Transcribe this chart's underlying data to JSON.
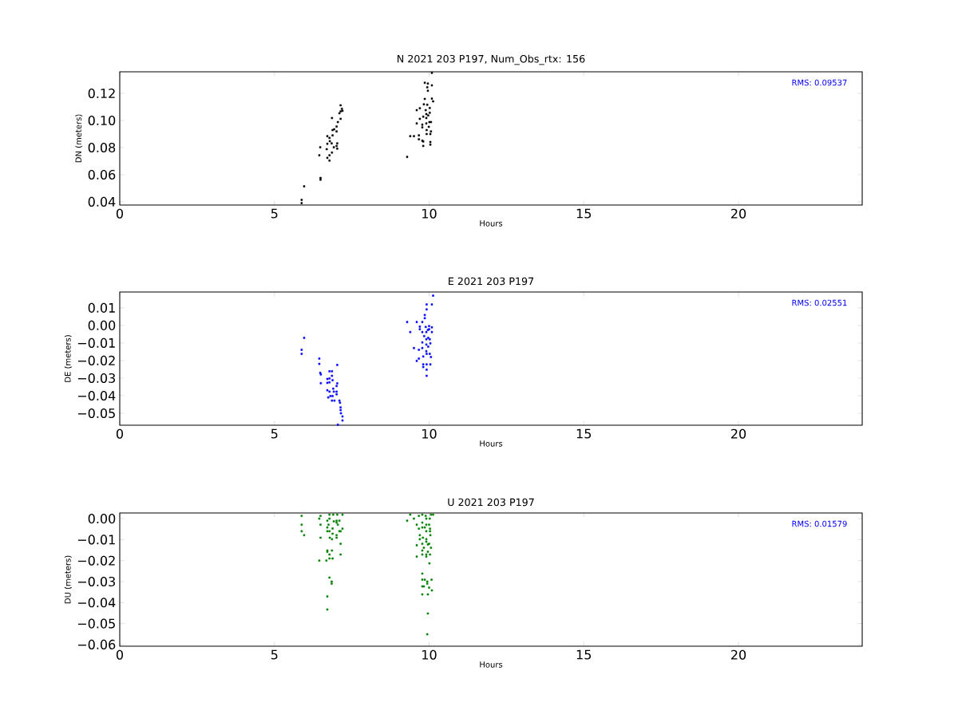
{
  "chart_data": [
    {
      "type": "scatter",
      "title": "N 2021 203 P197, Num_Obs_rtx: 156",
      "xlabel": "Hours",
      "ylabel": "DN (meters)",
      "color": "#000000",
      "marker": "square",
      "xlim": [
        0,
        24
      ],
      "xticks": [
        0,
        5,
        10,
        15,
        20
      ],
      "ylim": [
        0.0376,
        0.1359
      ],
      "yticks": [
        0.04,
        0.06,
        0.08,
        {
          "value": 0.1,
          "label": "0.10"
        },
        0.12
      ],
      "annotations": [
        "RMS:  0.09537"
      ],
      "x": [
        5.88,
        5.88,
        5.96,
        6.49,
        6.49,
        6.45,
        6.48,
        6.69,
        6.71,
        6.78,
        6.78,
        6.71,
        6.71,
        6.78,
        6.79,
        6.85,
        6.86,
        6.92,
        7.01,
        7.03,
        7.03,
        6.88,
        6.88,
        6.93,
        7.01,
        7.01,
        7.05,
        6.86,
        7.14,
        7.1,
        7.14,
        7.18,
        7.14,
        7.2,
        9.29,
        9.39,
        9.51,
        9.6,
        9.6,
        9.67,
        9.67,
        9.7,
        9.7,
        9.78,
        9.81,
        9.81,
        9.78,
        9.78,
        9.81,
        9.83,
        9.86,
        9.86,
        9.89,
        9.91,
        9.91,
        9.91,
        9.92,
        9.92,
        9.94,
        9.94,
        9.96,
        9.96,
        9.97,
        9.99,
        10.01,
        10.02,
        10.02,
        10.04,
        10.04,
        10.04,
        10.06,
        10.06,
        10.09,
        10.09,
        10.13,
        10.09
      ],
      "values": [
        0.0414,
        0.039,
        0.0514,
        0.0576,
        0.0563,
        0.0743,
        0.0802,
        0.0788,
        0.0724,
        0.0704,
        0.0743,
        0.0828,
        0.0884,
        0.0871,
        0.0847,
        0.0831,
        0.0763,
        0.0802,
        0.0812,
        0.0831,
        0.0792,
        0.089,
        0.0929,
        0.0935,
        0.0955,
        0.0919,
        0.0988,
        0.1018,
        0.1012,
        0.1053,
        0.1067,
        0.1086,
        0.1112,
        0.1071,
        0.0731,
        0.0884,
        0.0884,
        0.0978,
        0.1076,
        0.089,
        0.0861,
        0.1012,
        0.109,
        0.0851,
        0.0812,
        0.0845,
        0.0969,
        0.0949,
        0.1028,
        0.1119,
        0.1159,
        0.1278,
        0.1076,
        0.1047,
        0.1018,
        0.0978,
        0.0929,
        0.09,
        0.1116,
        0.1245,
        0.1219,
        0.1272,
        0.1037,
        0.0953,
        0.0988,
        0.1092,
        0.1057,
        0.0841,
        0.0822,
        0.09,
        0.0919,
        0.0988,
        0.1259,
        0.1161,
        0.1141,
        0.1351
      ]
    },
    {
      "type": "scatter",
      "title": "E 2021 203 P197",
      "xlabel": "Hours",
      "ylabel": "DE (meters)",
      "color": "#0000ff",
      "marker": "square",
      "xlim": [
        0,
        24
      ],
      "xticks": [
        0,
        5,
        10,
        15,
        20
      ],
      "ylim": [
        -0.0568,
        0.019
      ],
      "yticks": [
        {
          "value": -0.05,
          "label": "−0.05"
        },
        {
          "value": -0.04,
          "label": "−0.04"
        },
        {
          "value": -0.03,
          "label": "−0.03"
        },
        {
          "value": -0.02,
          "label": "−0.02"
        },
        {
          "value": -0.01,
          "label": "−0.01"
        },
        {
          "value": 0,
          "label": "0.00"
        },
        {
          "value": 0.01,
          "label": "0.01"
        }
      ],
      "annotations": [
        "RMS:  0.02551"
      ],
      "x": [
        5.96,
        5.88,
        5.88,
        6.45,
        6.45,
        6.48,
        6.5,
        6.5,
        6.71,
        6.71,
        6.78,
        6.86,
        6.78,
        6.78,
        6.86,
        6.88,
        7.03,
        7.03,
        7.01,
        6.71,
        6.78,
        6.9,
        6.92,
        7.01,
        7.01,
        6.81,
        6.74,
        6.88,
        6.86,
        6.94,
        7.1,
        7.12,
        7.14,
        7.14,
        7.15,
        7.2,
        7.2,
        7.05,
        9.29,
        9.39,
        9.51,
        9.6,
        9.6,
        9.67,
        9.67,
        9.7,
        9.7,
        9.78,
        9.78,
        9.78,
        9.78,
        9.81,
        9.81,
        9.81,
        9.86,
        9.86,
        9.84,
        9.89,
        9.91,
        9.91,
        9.91,
        9.91,
        9.92,
        9.92,
        9.92,
        9.92,
        9.92,
        9.92,
        9.96,
        9.97,
        9.97,
        10.0,
        10.0,
        10.02,
        10.02,
        10.04,
        10.04,
        10.06,
        10.09,
        10.09,
        10.09,
        10.13
      ],
      "values": [
        -0.0071,
        -0.0139,
        -0.0162,
        -0.0189,
        -0.0219,
        -0.027,
        -0.0279,
        -0.0329,
        -0.0305,
        -0.0327,
        -0.0261,
        -0.0261,
        -0.0302,
        -0.0324,
        -0.0287,
        -0.0312,
        -0.0225,
        -0.033,
        -0.0345,
        -0.0369,
        -0.0377,
        -0.036,
        -0.0377,
        -0.0377,
        -0.0392,
        -0.0402,
        -0.041,
        -0.0402,
        -0.0428,
        -0.0428,
        -0.0428,
        -0.044,
        -0.0467,
        -0.0482,
        -0.05,
        -0.0518,
        -0.0541,
        -0.0565,
        0.0019,
        -0.0038,
        -0.0129,
        0.0019,
        -0.0202,
        -0.0139,
        -0.0189,
        -0.0007,
        -0.0022,
        0.0019,
        -0.0038,
        -0.0097,
        -0.0129,
        -0.0177,
        -0.0222,
        -0.0237,
        0.0059,
        0.0041,
        -0.0061,
        -0.0009,
        -0.0038,
        -0.0079,
        -0.0109,
        -0.0147,
        -0.0162,
        -0.0222,
        -0.0252,
        -0.0287,
        0.0091,
        0.0119,
        -0.0026,
        -0.0071,
        -0.0121,
        -0.0004,
        -0.0022,
        -0.0079,
        -0.0162,
        -0.0222,
        -0.0102,
        -0.018,
        -0.0011,
        -0.0038,
        0.0119,
        0.0169
      ]
    },
    {
      "type": "scatter",
      "title": "U 2021 203 P197",
      "xlabel": "Hours",
      "ylabel": "DU (meters)",
      "color": "#008000",
      "marker": "square",
      "xlim": [
        0,
        24
      ],
      "xticks": [
        0,
        5,
        10,
        15,
        20
      ],
      "ylim": [
        -0.0608,
        0.0027
      ],
      "yticks": [
        {
          "value": -0.06,
          "label": "−0.06"
        },
        {
          "value": -0.05,
          "label": "−0.05"
        },
        {
          "value": -0.04,
          "label": "−0.04"
        },
        {
          "value": -0.03,
          "label": "−0.03"
        },
        {
          "value": -0.02,
          "label": "−0.02"
        },
        {
          "value": -0.01,
          "label": "−0.01"
        },
        {
          "value": 0,
          "label": "0.00"
        }
      ],
      "annotations": [
        "RMS:  0.01579"
      ],
      "x": [
        5.88,
        5.88,
        5.88,
        5.96,
        6.45,
        6.49,
        6.49,
        6.49,
        6.45,
        6.68,
        6.71,
        6.71,
        6.71,
        6.71,
        6.71,
        6.78,
        6.78,
        6.75,
        6.78,
        6.79,
        6.78,
        6.78,
        6.78,
        6.85,
        6.85,
        6.71,
        6.71,
        6.86,
        6.86,
        6.88,
        6.88,
        6.88,
        6.9,
        6.92,
        7.01,
        7.01,
        7.01,
        7.01,
        7.03,
        7.05,
        7.1,
        7.1,
        7.14,
        7.14,
        7.14,
        7.2,
        7.2,
        9.29,
        9.39,
        9.51,
        9.6,
        9.6,
        9.6,
        9.67,
        9.67,
        9.7,
        9.7,
        9.78,
        9.78,
        9.78,
        9.8,
        9.78,
        9.78,
        9.78,
        9.78,
        9.78,
        9.78,
        9.78,
        9.83,
        9.86,
        9.83,
        9.86,
        9.89,
        9.91,
        9.91,
        9.91,
        9.91,
        9.91,
        9.91,
        9.91,
        9.94,
        9.94,
        9.96,
        9.96,
        9.96,
        9.96,
        9.94,
        10.0,
        10.01,
        10.0,
        10.03,
        10.03,
        10.03,
        10.04,
        10.06,
        10.08,
        10.09,
        10.06,
        10.13,
        10.02,
        10.0
      ],
      "values": [
        0.0013,
        -0.0029,
        -0.006,
        -0.0079,
        0.0,
        0.0013,
        -0.0029,
        -0.0091,
        -0.02,
        -0.02,
        -0.001,
        -0.0042,
        -0.006,
        -0.0152,
        -0.0158,
        0.0019,
        0.0,
        -0.0029,
        -0.006,
        -0.0091,
        -0.0171,
        -0.019,
        -0.0281,
        -0.03,
        -0.031,
        -0.0371,
        -0.0433,
        -0.0098,
        -0.0152,
        -0.0072,
        -0.019,
        -0.0047,
        0.0019,
        -0.0013,
        -0.001,
        -0.0019,
        -0.0079,
        -0.0091,
        0.0019,
        -0.0029,
        -0.006,
        -0.001,
        -0.012,
        -0.0171,
        -0.006,
        -0.0048,
        0.0019,
        -0.001,
        0.0019,
        0.0,
        -0.0029,
        -0.0127,
        -0.0181,
        0.0013,
        -0.0048,
        -0.0079,
        -0.0098,
        0.0019,
        -0.0019,
        -0.0042,
        -0.0091,
        -0.012,
        -0.0152,
        -0.0171,
        -0.0262,
        -0.0291,
        -0.0323,
        -0.0361,
        -0.0139,
        -0.0291,
        -0.0323,
        -0.0042,
        0.0013,
        0.0,
        -0.0029,
        -0.006,
        -0.0098,
        -0.011,
        -0.0171,
        -0.0181,
        -0.03,
        -0.031,
        -0.0158,
        -0.0123,
        -0.0361,
        -0.0452,
        -0.0551,
        -0.0329,
        -0.0213,
        -0.0029,
        -0.0048,
        -0.006,
        -0.0171,
        -0.0079,
        -0.0139,
        -0.0291,
        -0.0342,
        0.0019,
        0.0019,
        0.0,
        -0.012
      ]
    }
  ]
}
